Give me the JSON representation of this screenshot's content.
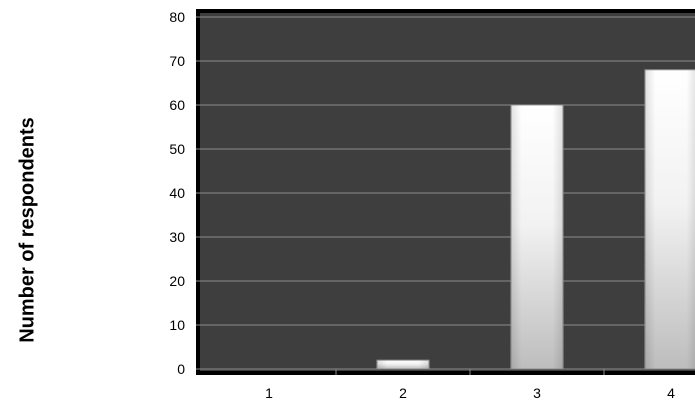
{
  "chart_data": {
    "type": "bar",
    "title": "",
    "xlabel": "",
    "ylabel": "Number of respondents",
    "categories": [
      "1",
      "2",
      "3",
      "4"
    ],
    "values": [
      0,
      2,
      60,
      68
    ],
    "ylim": [
      0,
      80
    ],
    "yticks": [
      0,
      10,
      20,
      30,
      40,
      50,
      60,
      70,
      80
    ],
    "grid": true
  },
  "colors": {
    "plot_background": "#3e3e3e",
    "plot_border": "#000000",
    "gridline": "#8c8c8c",
    "bar_light": "#ffffff",
    "bar_dark": "#bdbdbd",
    "bar_stroke": "#9a9a9a",
    "axis_text": "#000000"
  }
}
